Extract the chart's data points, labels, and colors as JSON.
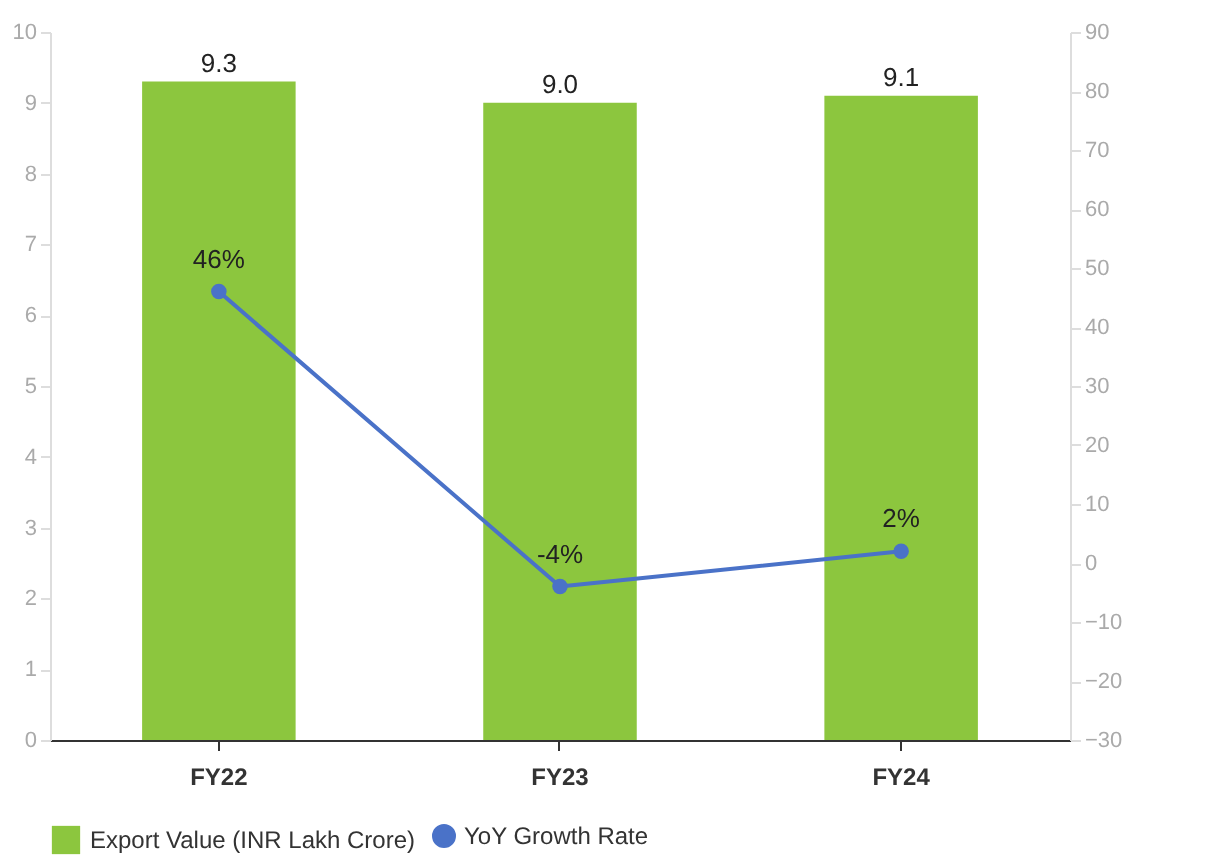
{
  "chart_data": {
    "type": "bar",
    "categories": [
      "FY22",
      "FY23",
      "FY24"
    ],
    "series": [
      {
        "name": "Export Value (INR Lakh Crore)",
        "color": "#8cc63e",
        "values": [
          9.3,
          9.0,
          9.1
        ],
        "value_labels": [
          "9.3",
          "9.0",
          "9.1"
        ]
      },
      {
        "name": "YoY Growth Rate",
        "type": "line",
        "axis": "y2",
        "color": "#4a72c8",
        "values": [
          46,
          -4,
          2
        ],
        "value_labels": [
          "46%",
          "-4%",
          "2%"
        ]
      }
    ],
    "ylim": [
      0,
      10
    ],
    "yticks": [
      0,
      1,
      2,
      3,
      4,
      5,
      6,
      7,
      8,
      9,
      10
    ],
    "y2lim": [
      -30,
      90
    ],
    "y2ticks": [
      -30,
      -20,
      -10,
      0,
      10,
      20,
      30,
      40,
      50,
      60,
      70,
      80,
      90
    ],
    "marker": "circle",
    "line_style": "solid",
    "grid": false,
    "legend": "bottom"
  }
}
